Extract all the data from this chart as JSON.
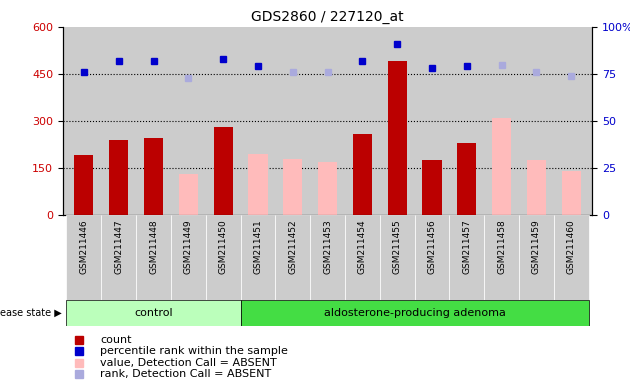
{
  "title": "GDS2860 / 227120_at",
  "samples": [
    "GSM211446",
    "GSM211447",
    "GSM211448",
    "GSM211449",
    "GSM211450",
    "GSM211451",
    "GSM211452",
    "GSM211453",
    "GSM211454",
    "GSM211455",
    "GSM211456",
    "GSM211457",
    "GSM211458",
    "GSM211459",
    "GSM211460"
  ],
  "count_values": [
    190,
    240,
    245,
    0,
    280,
    0,
    0,
    0,
    260,
    490,
    175,
    230,
    0,
    0,
    0
  ],
  "absent_values": [
    0,
    0,
    0,
    130,
    0,
    195,
    180,
    170,
    0,
    0,
    0,
    0,
    310,
    175,
    140
  ],
  "perc_dark_pct": [
    76,
    82,
    82,
    0,
    83,
    79,
    0,
    0,
    82,
    91,
    78,
    79,
    0,
    0,
    0
  ],
  "perc_light_pct": [
    0,
    0,
    0,
    73,
    0,
    0,
    76,
    76,
    0,
    0,
    0,
    0,
    80,
    76,
    74
  ],
  "n_control": 5,
  "ylim_left": [
    0,
    600
  ],
  "ylim_right": [
    0,
    100
  ],
  "yticks_left": [
    0,
    150,
    300,
    450,
    600
  ],
  "yticks_right": [
    0,
    25,
    50,
    75,
    100
  ],
  "bar_color_dark": "#bb0000",
  "bar_color_light": "#ffbbbb",
  "dot_color_dark": "#0000cc",
  "dot_color_light": "#aaaadd",
  "bg_color": "#cccccc",
  "group_bg_control": "#bbffbb",
  "group_bg_adenoma": "#44dd44",
  "ytick_color_left": "#cc0000",
  "ytick_color_right": "#0000cc"
}
